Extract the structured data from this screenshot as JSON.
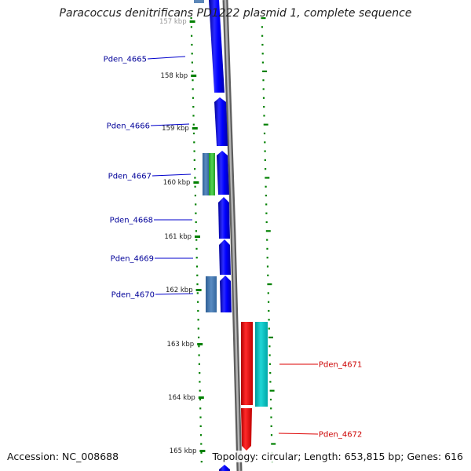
{
  "title": "Paracoccus denitrificans PD1222 plasmid 1, complete sequence",
  "footer": {
    "accession": "Accession: NC_008688",
    "topology": "Topology: circular; Length: 653,815 bp; Genes: 616"
  },
  "colors": {
    "background": "#ffffff",
    "backbone": "#8a8a8a",
    "forward_cds": "#0000ff",
    "reverse_cds": "#ff0000",
    "rna": "#00c0c0",
    "feature_steelblue": "#4a7ab0",
    "feature_green": "#40c040",
    "tick": "#008000",
    "forward_label": "#000099",
    "reverse_label": "#cc0000"
  },
  "scale": {
    "unit": "kbp",
    "ticks": [
      {
        "label": "157 kbp",
        "faint": true
      },
      {
        "label": "158 kbp"
      },
      {
        "label": "159 kbp"
      },
      {
        "label": "160 kbp"
      },
      {
        "label": "161 kbp"
      },
      {
        "label": "162 kbp"
      },
      {
        "label": "163 kbp"
      },
      {
        "label": "164 kbp"
      },
      {
        "label": "165 kbp"
      }
    ]
  },
  "genes": [
    {
      "name": "Pden_4665",
      "strand": "forward"
    },
    {
      "name": "Pden_4666",
      "strand": "forward"
    },
    {
      "name": "Pden_4667",
      "strand": "forward"
    },
    {
      "name": "Pden_4668",
      "strand": "forward"
    },
    {
      "name": "Pden_4669",
      "strand": "forward"
    },
    {
      "name": "Pden_4670",
      "strand": "forward"
    },
    {
      "name": "Pden_4671",
      "strand": "reverse"
    },
    {
      "name": "Pden_4672",
      "strand": "reverse"
    }
  ]
}
